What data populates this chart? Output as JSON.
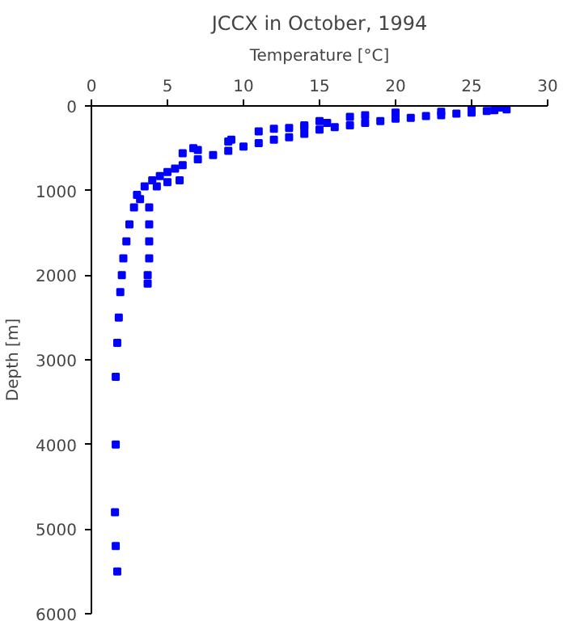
{
  "chart_data": {
    "type": "scatter",
    "title": "JCCX in October, 1994",
    "xlabel": "Temperature [°C]",
    "ylabel": "Depth [m]",
    "xlim": [
      0,
      30
    ],
    "xticks": [
      0,
      5,
      10,
      15,
      20,
      25,
      30
    ],
    "ylim": [
      6000,
      0
    ],
    "yticks": [
      0,
      1000,
      2000,
      3000,
      4000,
      5000,
      6000
    ],
    "grid": false,
    "marker": "square",
    "series": [
      {
        "color": "#0000ff",
        "x": [
          27.3,
          26.5,
          26,
          25,
          24,
          23,
          22,
          21,
          20,
          19,
          18,
          17,
          16,
          15,
          14,
          13,
          12,
          11,
          10,
          9,
          8,
          7,
          6,
          5.5,
          5,
          4.5,
          4,
          3.5,
          3,
          2.8,
          2.5,
          2.3,
          2.1,
          2,
          1.9,
          1.8,
          1.7,
          1.6,
          1.6,
          1.55,
          1.6,
          1.7,
          27,
          25,
          23,
          20,
          18,
          17,
          15,
          14,
          13,
          11,
          9,
          7,
          6,
          3.8,
          3.8,
          3.8,
          3.8,
          3.7,
          3.7,
          3.2,
          6.7,
          9.2,
          12,
          14,
          15.5,
          5,
          4.3,
          5.8
        ],
        "values": [
          40,
          50,
          60,
          80,
          90,
          110,
          120,
          140,
          150,
          180,
          200,
          230,
          250,
          280,
          330,
          370,
          400,
          440,
          480,
          530,
          580,
          630,
          700,
          740,
          780,
          830,
          880,
          950,
          1050,
          1200,
          1400,
          1600,
          1800,
          2000,
          2200,
          2500,
          2800,
          3200,
          4000,
          4800,
          5200,
          5500,
          20,
          40,
          70,
          80,
          110,
          130,
          180,
          230,
          260,
          300,
          420,
          520,
          560,
          1200,
          1400,
          1600,
          1800,
          2000,
          2100,
          1100,
          500,
          400,
          270,
          250,
          200,
          900,
          950,
          880
        ]
      }
    ]
  }
}
